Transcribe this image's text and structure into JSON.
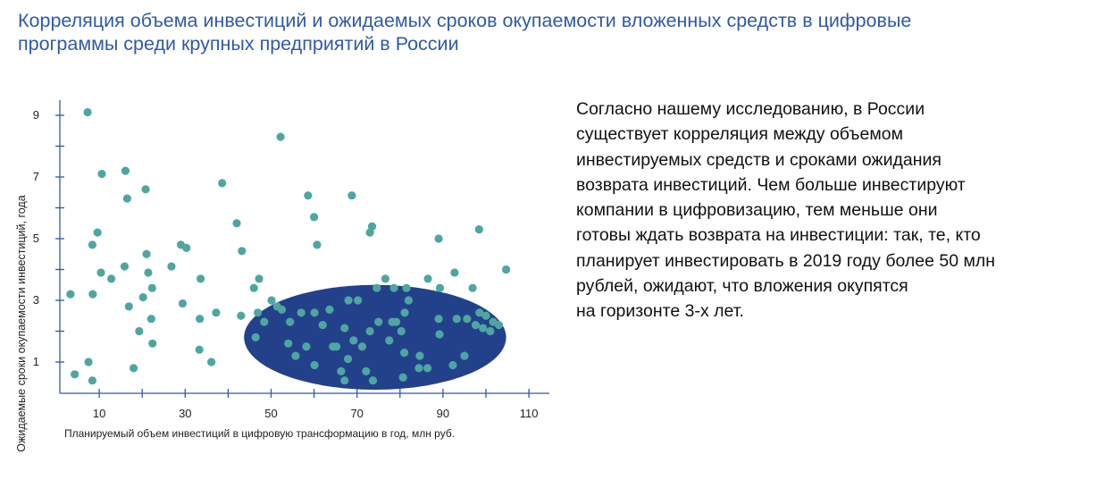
{
  "title": {
    "line1": "Корреляция объема инвестиций и ожидаемых сроков окупаемости вложенных средств в цифровые",
    "line2": "программы среди крупных предприятий в России"
  },
  "body_text": {
    "lines": [
      "Согласно нашему исследованию, в России",
      "существует корреляция между объемом",
      "инвестируемых средств и сроками ожидания",
      "возврата инвестиций. Чем больше инвестируют",
      "компании в цифровизацию, тем меньше они",
      "готовы ждать возврата на инвестиции: так, те, кто",
      "планирует инвестировать в 2019 году более 50 млн",
      "рублей, ожидают, что вложения окупятся",
      "на горизонте 3-х лет."
    ]
  },
  "colors": {
    "title": "#2f5aa8",
    "axis": "#2f5aa8",
    "dot": "#4ea6a1",
    "ellipse": "#23418a"
  },
  "chart_data": {
    "type": "scatter",
    "title": "Корреляция объема инвестиций и ожидаемых сроков окупаемости вложенных средств в цифровые программы среди крупных предприятий в России",
    "xlabel": "Планируемый объем инвестиций в цифровую трансформацию в год, млн руб.",
    "ylabel": "Ожидаемые сроки окупаемости инвестиций, года",
    "x_ticks": [
      "10",
      "30",
      "50",
      "70",
      "90",
      "110"
    ],
    "y_ticks": [
      "1",
      "3",
      "5",
      "7",
      "9"
    ],
    "xlim": [
      1,
      115
    ],
    "ylim": [
      0,
      9.5
    ],
    "grid": false,
    "legend": null,
    "highlight_region": {
      "shape": "ellipse",
      "cx": 74.2,
      "cy": 1.8,
      "rx": 30.5,
      "ry": 1.7,
      "note": "кластер: >50 млн руб., окупаемость ~3 года"
    },
    "points": [
      {
        "x": 7.3,
        "y": 9.1
      },
      {
        "x": 10.6,
        "y": 7.1
      },
      {
        "x": 16.1,
        "y": 7.2
      },
      {
        "x": 16.5,
        "y": 6.3
      },
      {
        "x": 20.8,
        "y": 6.6
      },
      {
        "x": 38.6,
        "y": 6.8
      },
      {
        "x": 52.2,
        "y": 8.3
      },
      {
        "x": 9.6,
        "y": 5.2
      },
      {
        "x": 8.4,
        "y": 4.8
      },
      {
        "x": 29.0,
        "y": 4.8
      },
      {
        "x": 30.3,
        "y": 4.7
      },
      {
        "x": 21.0,
        "y": 4.5
      },
      {
        "x": 43.2,
        "y": 4.6
      },
      {
        "x": 42.0,
        "y": 5.5
      },
      {
        "x": 58.6,
        "y": 6.4
      },
      {
        "x": 60.0,
        "y": 5.7
      },
      {
        "x": 60.7,
        "y": 4.8
      },
      {
        "x": 68.8,
        "y": 6.4
      },
      {
        "x": 73.5,
        "y": 5.4
      },
      {
        "x": 73.0,
        "y": 5.2
      },
      {
        "x": 89.0,
        "y": 5.0
      },
      {
        "x": 98.4,
        "y": 5.3
      },
      {
        "x": 3.3,
        "y": 3.2
      },
      {
        "x": 10.4,
        "y": 3.9
      },
      {
        "x": 12.8,
        "y": 3.7
      },
      {
        "x": 15.9,
        "y": 4.1
      },
      {
        "x": 21.4,
        "y": 3.9
      },
      {
        "x": 26.8,
        "y": 4.1
      },
      {
        "x": 8.5,
        "y": 3.2
      },
      {
        "x": 16.9,
        "y": 2.8
      },
      {
        "x": 20.2,
        "y": 3.1
      },
      {
        "x": 22.3,
        "y": 3.4
      },
      {
        "x": 29.4,
        "y": 2.9
      },
      {
        "x": 33.6,
        "y": 3.7
      },
      {
        "x": 22.1,
        "y": 2.4
      },
      {
        "x": 19.3,
        "y": 2.0
      },
      {
        "x": 22.4,
        "y": 1.6
      },
      {
        "x": 33.4,
        "y": 2.4
      },
      {
        "x": 37.2,
        "y": 2.6
      },
      {
        "x": 43.0,
        "y": 2.5
      },
      {
        "x": 46.0,
        "y": 3.4
      },
      {
        "x": 47.2,
        "y": 3.7
      },
      {
        "x": 33.3,
        "y": 1.4
      },
      {
        "x": 7.5,
        "y": 1.0
      },
      {
        "x": 4.3,
        "y": 0.6
      },
      {
        "x": 8.4,
        "y": 0.4
      },
      {
        "x": 18.0,
        "y": 0.8
      },
      {
        "x": 36.1,
        "y": 1.0
      },
      {
        "x": 48.4,
        "y": 2.3
      },
      {
        "x": 51.4,
        "y": 2.8
      },
      {
        "x": 52.5,
        "y": 2.7
      },
      {
        "x": 50.1,
        "y": 3.0
      },
      {
        "x": 46.9,
        "y": 2.6
      },
      {
        "x": 46.4,
        "y": 1.8
      },
      {
        "x": 54.4,
        "y": 2.3
      },
      {
        "x": 54.0,
        "y": 1.6
      },
      {
        "x": 55.7,
        "y": 1.2
      },
      {
        "x": 57.0,
        "y": 2.6
      },
      {
        "x": 58.2,
        "y": 1.5
      },
      {
        "x": 60.1,
        "y": 0.9
      },
      {
        "x": 60.1,
        "y": 2.6
      },
      {
        "x": 63.6,
        "y": 2.7
      },
      {
        "x": 62.0,
        "y": 2.2
      },
      {
        "x": 64.4,
        "y": 1.5
      },
      {
        "x": 65.2,
        "y": 1.5
      },
      {
        "x": 66.3,
        "y": 0.7
      },
      {
        "x": 67.1,
        "y": 0.4
      },
      {
        "x": 67.9,
        "y": 1.1
      },
      {
        "x": 67.1,
        "y": 2.1
      },
      {
        "x": 68.0,
        "y": 3.0
      },
      {
        "x": 70.2,
        "y": 3.0
      },
      {
        "x": 69.2,
        "y": 1.7
      },
      {
        "x": 71.2,
        "y": 1.5
      },
      {
        "x": 72.1,
        "y": 0.7
      },
      {
        "x": 73.7,
        "y": 0.4
      },
      {
        "x": 73.0,
        "y": 2.0
      },
      {
        "x": 75.0,
        "y": 2.3
      },
      {
        "x": 74.6,
        "y": 3.4
      },
      {
        "x": 76.6,
        "y": 3.7
      },
      {
        "x": 78.6,
        "y": 3.4
      },
      {
        "x": 81.5,
        "y": 3.4
      },
      {
        "x": 77.5,
        "y": 1.7
      },
      {
        "x": 78.2,
        "y": 2.3
      },
      {
        "x": 79.1,
        "y": 2.3
      },
      {
        "x": 80.3,
        "y": 2.0
      },
      {
        "x": 81.0,
        "y": 1.3
      },
      {
        "x": 81.1,
        "y": 2.6
      },
      {
        "x": 82.0,
        "y": 3.0
      },
      {
        "x": 80.7,
        "y": 0.5
      },
      {
        "x": 84.4,
        "y": 0.8
      },
      {
        "x": 84.6,
        "y": 1.2
      },
      {
        "x": 86.4,
        "y": 0.8
      },
      {
        "x": 86.5,
        "y": 3.7
      },
      {
        "x": 89.3,
        "y": 3.4
      },
      {
        "x": 89.2,
        "y": 1.9
      },
      {
        "x": 89.0,
        "y": 2.4
      },
      {
        "x": 92.7,
        "y": 3.9
      },
      {
        "x": 93.2,
        "y": 2.4
      },
      {
        "x": 95.6,
        "y": 2.4
      },
      {
        "x": 96.9,
        "y": 3.4
      },
      {
        "x": 97.6,
        "y": 2.2
      },
      {
        "x": 95.0,
        "y": 1.2
      },
      {
        "x": 92.3,
        "y": 0.9
      },
      {
        "x": 98.5,
        "y": 2.6
      },
      {
        "x": 99.3,
        "y": 2.1
      },
      {
        "x": 101.0,
        "y": 2.0
      },
      {
        "x": 100.0,
        "y": 2.5
      },
      {
        "x": 101.7,
        "y": 2.3
      },
      {
        "x": 103.0,
        "y": 2.2
      },
      {
        "x": 104.7,
        "y": 4.0
      }
    ]
  }
}
